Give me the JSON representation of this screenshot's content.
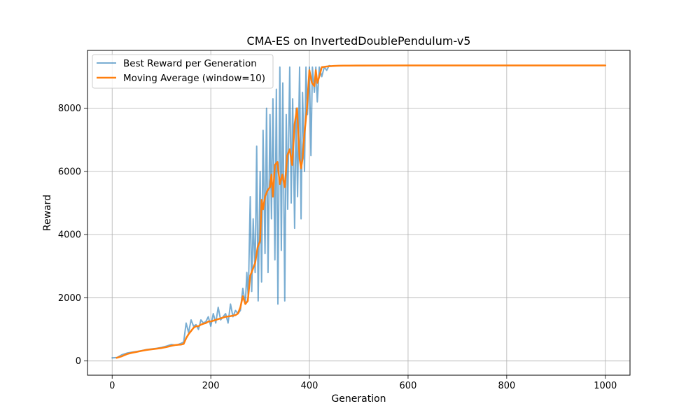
{
  "chart_data": {
    "type": "line",
    "title": "CMA-ES on InvertedDoublePendulum-v5",
    "xlabel": "Generation",
    "ylabel": "Reward",
    "xlim": [
      -50,
      1050
    ],
    "ylim": [
      -450,
      9830
    ],
    "xticks": [
      0,
      200,
      400,
      600,
      800,
      1000
    ],
    "yticks": [
      0,
      2000,
      4000,
      6000,
      8000
    ],
    "grid": true,
    "legend_position": "top-left",
    "series": [
      {
        "name": "Best Reward per Generation",
        "color": "#1f77b4",
        "opacity": 0.6,
        "width": 2,
        "x": [
          0,
          10,
          20,
          30,
          40,
          50,
          60,
          70,
          80,
          90,
          100,
          110,
          120,
          130,
          140,
          145,
          150,
          155,
          160,
          165,
          170,
          175,
          180,
          185,
          190,
          195,
          200,
          205,
          210,
          215,
          220,
          225,
          230,
          235,
          240,
          245,
          250,
          255,
          260,
          265,
          270,
          273,
          276,
          280,
          283,
          286,
          290,
          293,
          296,
          300,
          303,
          306,
          310,
          313,
          316,
          320,
          323,
          326,
          330,
          333,
          336,
          340,
          343,
          346,
          350,
          353,
          356,
          360,
          363,
          366,
          370,
          373,
          376,
          380,
          383,
          386,
          390,
          393,
          396,
          400,
          403,
          406,
          410,
          413,
          416,
          420,
          425,
          430,
          435,
          440,
          445,
          450,
          460,
          470,
          480,
          490,
          500,
          520,
          540,
          560,
          580,
          600,
          650,
          700,
          750,
          800,
          850,
          900,
          950,
          1000
        ],
        "y": [
          100,
          110,
          200,
          250,
          280,
          300,
          330,
          360,
          380,
          400,
          430,
          470,
          520,
          500,
          560,
          600,
          1200,
          900,
          1300,
          1100,
          1150,
          1000,
          1300,
          1200,
          1250,
          1400,
          1100,
          1500,
          1200,
          1700,
          1300,
          1400,
          1500,
          1200,
          1800,
          1400,
          1600,
          1500,
          1600,
          2300,
          1800,
          2800,
          2000,
          5200,
          2200,
          4500,
          2800,
          6800,
          1900,
          6000,
          2500,
          7300,
          3400,
          8000,
          2800,
          7800,
          4500,
          8300,
          3200,
          8600,
          1800,
          9300,
          3500,
          8800,
          1900,
          7800,
          4800,
          9300,
          5000,
          8300,
          4200,
          8000,
          5200,
          9300,
          4500,
          8500,
          6000,
          9300,
          7800,
          9300,
          6500,
          9300,
          8500,
          9300,
          8200,
          9300,
          9000,
          9300,
          9200,
          9350,
          9330,
          9340,
          9345,
          9345,
          9348,
          9350,
          9350,
          9352,
          9352,
          9353,
          9353,
          9353,
          9353,
          9354,
          9354,
          9354,
          9354,
          9354,
          9354,
          9354
        ]
      },
      {
        "name": "Moving Average (window=10)",
        "color": "#ff7f0e",
        "opacity": 1,
        "width": 2.5,
        "x": [
          9,
          20,
          30,
          40,
          50,
          60,
          70,
          80,
          90,
          100,
          110,
          120,
          130,
          140,
          145,
          150,
          155,
          160,
          165,
          170,
          175,
          180,
          185,
          190,
          195,
          200,
          210,
          220,
          230,
          240,
          250,
          255,
          260,
          265,
          270,
          275,
          280,
          285,
          290,
          295,
          300,
          303,
          306,
          310,
          315,
          320,
          323,
          326,
          330,
          335,
          340,
          345,
          350,
          355,
          360,
          365,
          370,
          375,
          380,
          383,
          386,
          390,
          395,
          400,
          405,
          410,
          413,
          416,
          420,
          425,
          430,
          435,
          440,
          450,
          460,
          470,
          480,
          500,
          600,
          700,
          800,
          900,
          1000
        ],
        "y": [
          100,
          150,
          220,
          260,
          290,
          320,
          350,
          370,
          390,
          410,
          440,
          480,
          510,
          520,
          540,
          720,
          850,
          950,
          1050,
          1100,
          1100,
          1150,
          1180,
          1200,
          1250,
          1250,
          1300,
          1350,
          1400,
          1420,
          1450,
          1500,
          1700,
          2050,
          1800,
          1900,
          2700,
          2900,
          3100,
          3600,
          3800,
          5100,
          4800,
          5200,
          5400,
          5500,
          5900,
          5200,
          6200,
          6300,
          5600,
          5900,
          5500,
          6500,
          6700,
          6200,
          7500,
          8000,
          6400,
          6100,
          6400,
          7200,
          8000,
          9200,
          8800,
          8700,
          9200,
          8800,
          9000,
          9300,
          9310,
          9320,
          9330,
          9340,
          9345,
          9348,
          9350,
          9352,
          9353,
          9353,
          9354,
          9354,
          9354
        ]
      }
    ]
  }
}
